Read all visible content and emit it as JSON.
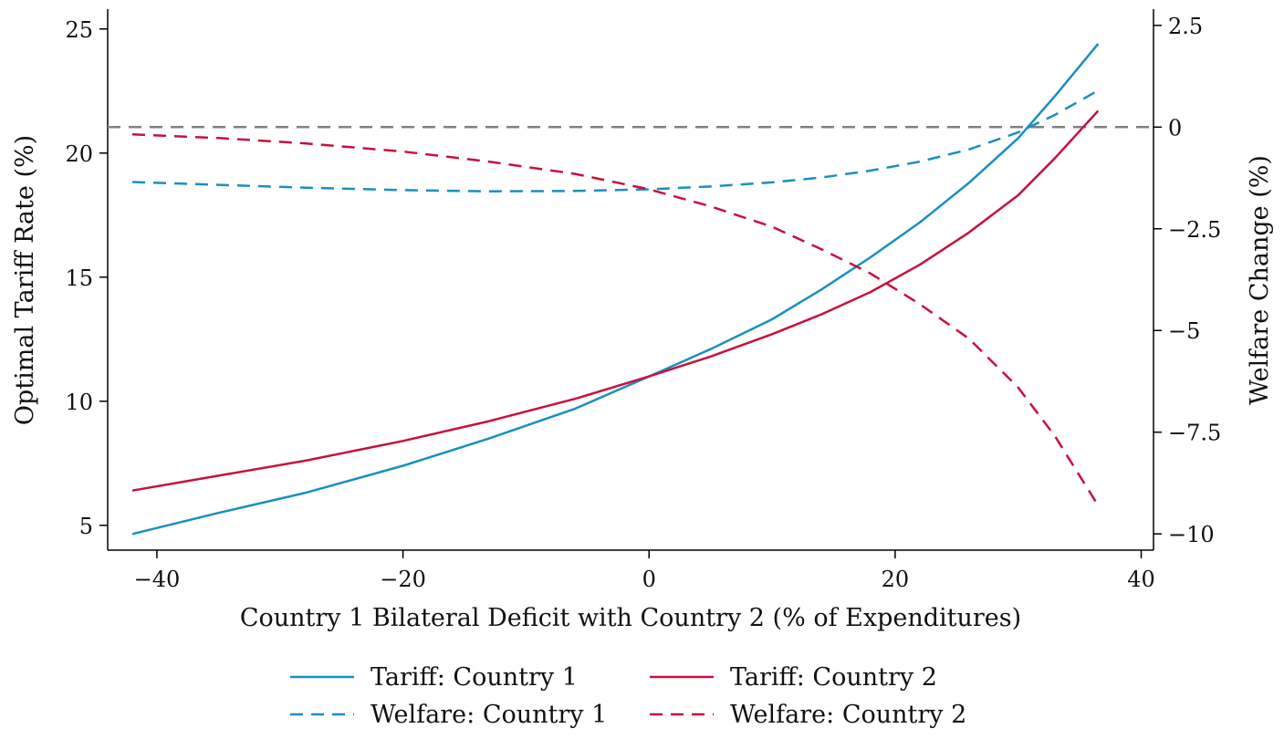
{
  "chart_data": {
    "type": "line",
    "title": "",
    "xlabel": "Country 1 Bilateral Deficit with Country 2 (% of Expenditures)",
    "ylabel_left": "Optimal Tariff Rate (%)",
    "ylabel_right": "Welfare Change (%)",
    "xlim": [
      -44,
      41
    ],
    "ylim_left": [
      4.0,
      25.8
    ],
    "ylim_right": [
      -10.4,
      2.9
    ],
    "x_ticks": [
      -40,
      -20,
      0,
      20,
      40
    ],
    "x_tick_labels": [
      "−40",
      "−20",
      "0",
      "20",
      "40"
    ],
    "y_left_ticks": [
      5,
      10,
      15,
      20,
      25
    ],
    "y_left_tick_labels": [
      "5",
      "10",
      "15",
      "20",
      "25"
    ],
    "y_right_ticks": [
      2.5,
      0,
      -2.5,
      -5,
      -7.5,
      -10
    ],
    "y_right_tick_labels": [
      "2.5",
      "0",
      "−2.5",
      "−5",
      "−7.5",
      "−10"
    ],
    "reference_line": {
      "axis": "right",
      "y": 0,
      "color": "#808080",
      "style": "dashed"
    },
    "grid": false,
    "legend_position": "bottom",
    "series": [
      {
        "name": "Tariff: Country 1",
        "axis": "left",
        "style": "solid",
        "color": "#1a8fbf",
        "x": [
          -42,
          -35,
          -28,
          -20,
          -13,
          -6,
          0,
          5,
          10,
          14,
          18,
          22,
          26,
          30,
          33,
          36.5
        ],
        "y": [
          4.65,
          5.5,
          6.3,
          7.4,
          8.5,
          9.7,
          11.0,
          12.1,
          13.3,
          14.5,
          15.8,
          17.2,
          18.8,
          20.6,
          22.3,
          24.4
        ]
      },
      {
        "name": "Tariff: Country 2",
        "axis": "left",
        "style": "solid",
        "color": "#c8103e",
        "x": [
          -42,
          -35,
          -28,
          -20,
          -13,
          -6,
          0,
          5,
          10,
          14,
          18,
          22,
          26,
          30,
          33,
          36.5
        ],
        "y": [
          6.4,
          7.0,
          7.6,
          8.4,
          9.2,
          10.1,
          11.0,
          11.8,
          12.7,
          13.5,
          14.4,
          15.5,
          16.8,
          18.3,
          19.8,
          21.7
        ]
      },
      {
        "name": "Welfare: Country 1",
        "axis": "right",
        "style": "dashed",
        "color": "#1a8fbf",
        "x": [
          -42,
          -35,
          -28,
          -20,
          -13,
          -6,
          0,
          5,
          10,
          14,
          18,
          22,
          26,
          30,
          33,
          36.5
        ],
        "y": [
          -1.35,
          -1.42,
          -1.49,
          -1.55,
          -1.58,
          -1.57,
          -1.53,
          -1.46,
          -1.36,
          -1.24,
          -1.07,
          -0.85,
          -0.55,
          -0.13,
          0.3,
          0.9
        ]
      },
      {
        "name": "Welfare: Country 2",
        "axis": "right",
        "style": "dashed",
        "color": "#c8103e",
        "x": [
          -42,
          -35,
          -28,
          -20,
          -13,
          -6,
          0,
          5,
          10,
          14,
          18,
          22,
          26,
          30,
          33,
          36.5
        ],
        "y": [
          -0.18,
          -0.27,
          -0.4,
          -0.6,
          -0.85,
          -1.15,
          -1.53,
          -1.95,
          -2.45,
          -3.0,
          -3.6,
          -4.35,
          -5.2,
          -6.4,
          -7.6,
          -9.3
        ]
      }
    ]
  }
}
